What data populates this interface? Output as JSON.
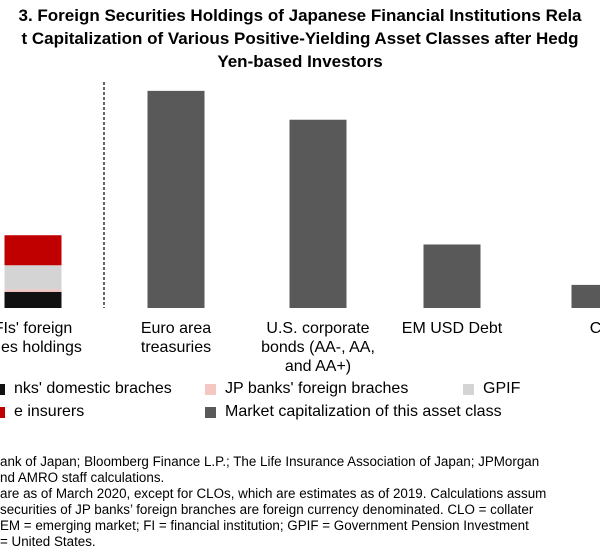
{
  "title_lines": [
    "3. Foreign Securities Holdings of Japanese Financial Institutions Rela",
    "t Capitalization of Various Positive-Yielding Asset Classes after Hedg",
    "Yen-based Investors"
  ],
  "chart_data": {
    "type": "bar",
    "categories": [
      [
        "FIs' foreign",
        "rities holdings"
      ],
      [
        "Euro area",
        "treasuries"
      ],
      [
        "U.S. corporate",
        "bonds (AA-, AA,",
        "and AA+)"
      ],
      [
        "EM USD Debt"
      ],
      [
        "CL"
      ]
    ],
    "stacked_bar": {
      "segments": [
        {
          "name": "nks' domestic braches",
          "value": 14,
          "color": "#111111"
        },
        {
          "name": "JP banks' foreign braches",
          "value": 2,
          "color": "#f4c7c3"
        },
        {
          "name": "GPIF",
          "value": 21,
          "color": "#d4d4d4"
        },
        {
          "name": "e insurers",
          "value": 26,
          "color": "#c00000"
        }
      ]
    },
    "series": [
      {
        "name": "Market capitalization of this asset class",
        "color": "#595959",
        "values": [
          null,
          188,
          163,
          55,
          20
        ]
      }
    ],
    "ylim": [
      0,
      200
    ],
    "separator_after_category": 0,
    "legend": [
      {
        "label": "nks' domestic braches",
        "color": "#111111"
      },
      {
        "label": "JP banks' foreign braches",
        "color": "#f4c7c3"
      },
      {
        "label": "GPIF",
        "color": "#d4d4d4"
      },
      {
        "label": "e insurers",
        "color": "#c00000"
      },
      {
        "label": "Market capitalization of this asset class",
        "color": "#595959"
      }
    ]
  },
  "notes": [
    "ank of Japan; Bloomberg Finance L.P.; The Life Insurance Association of Japan; JPMorgan",
    "nd AMRO staff calculations.",
    "are as of March 2020, except for CLOs, which are estimates as of 2019. Calculations assum",
    "securities of JP banks’ foreign branches are foreign currency denominated. CLO = collater",
    " EM = emerging market; FI = financial institution; GPIF = Government Pension Investment",
    "= United States."
  ]
}
